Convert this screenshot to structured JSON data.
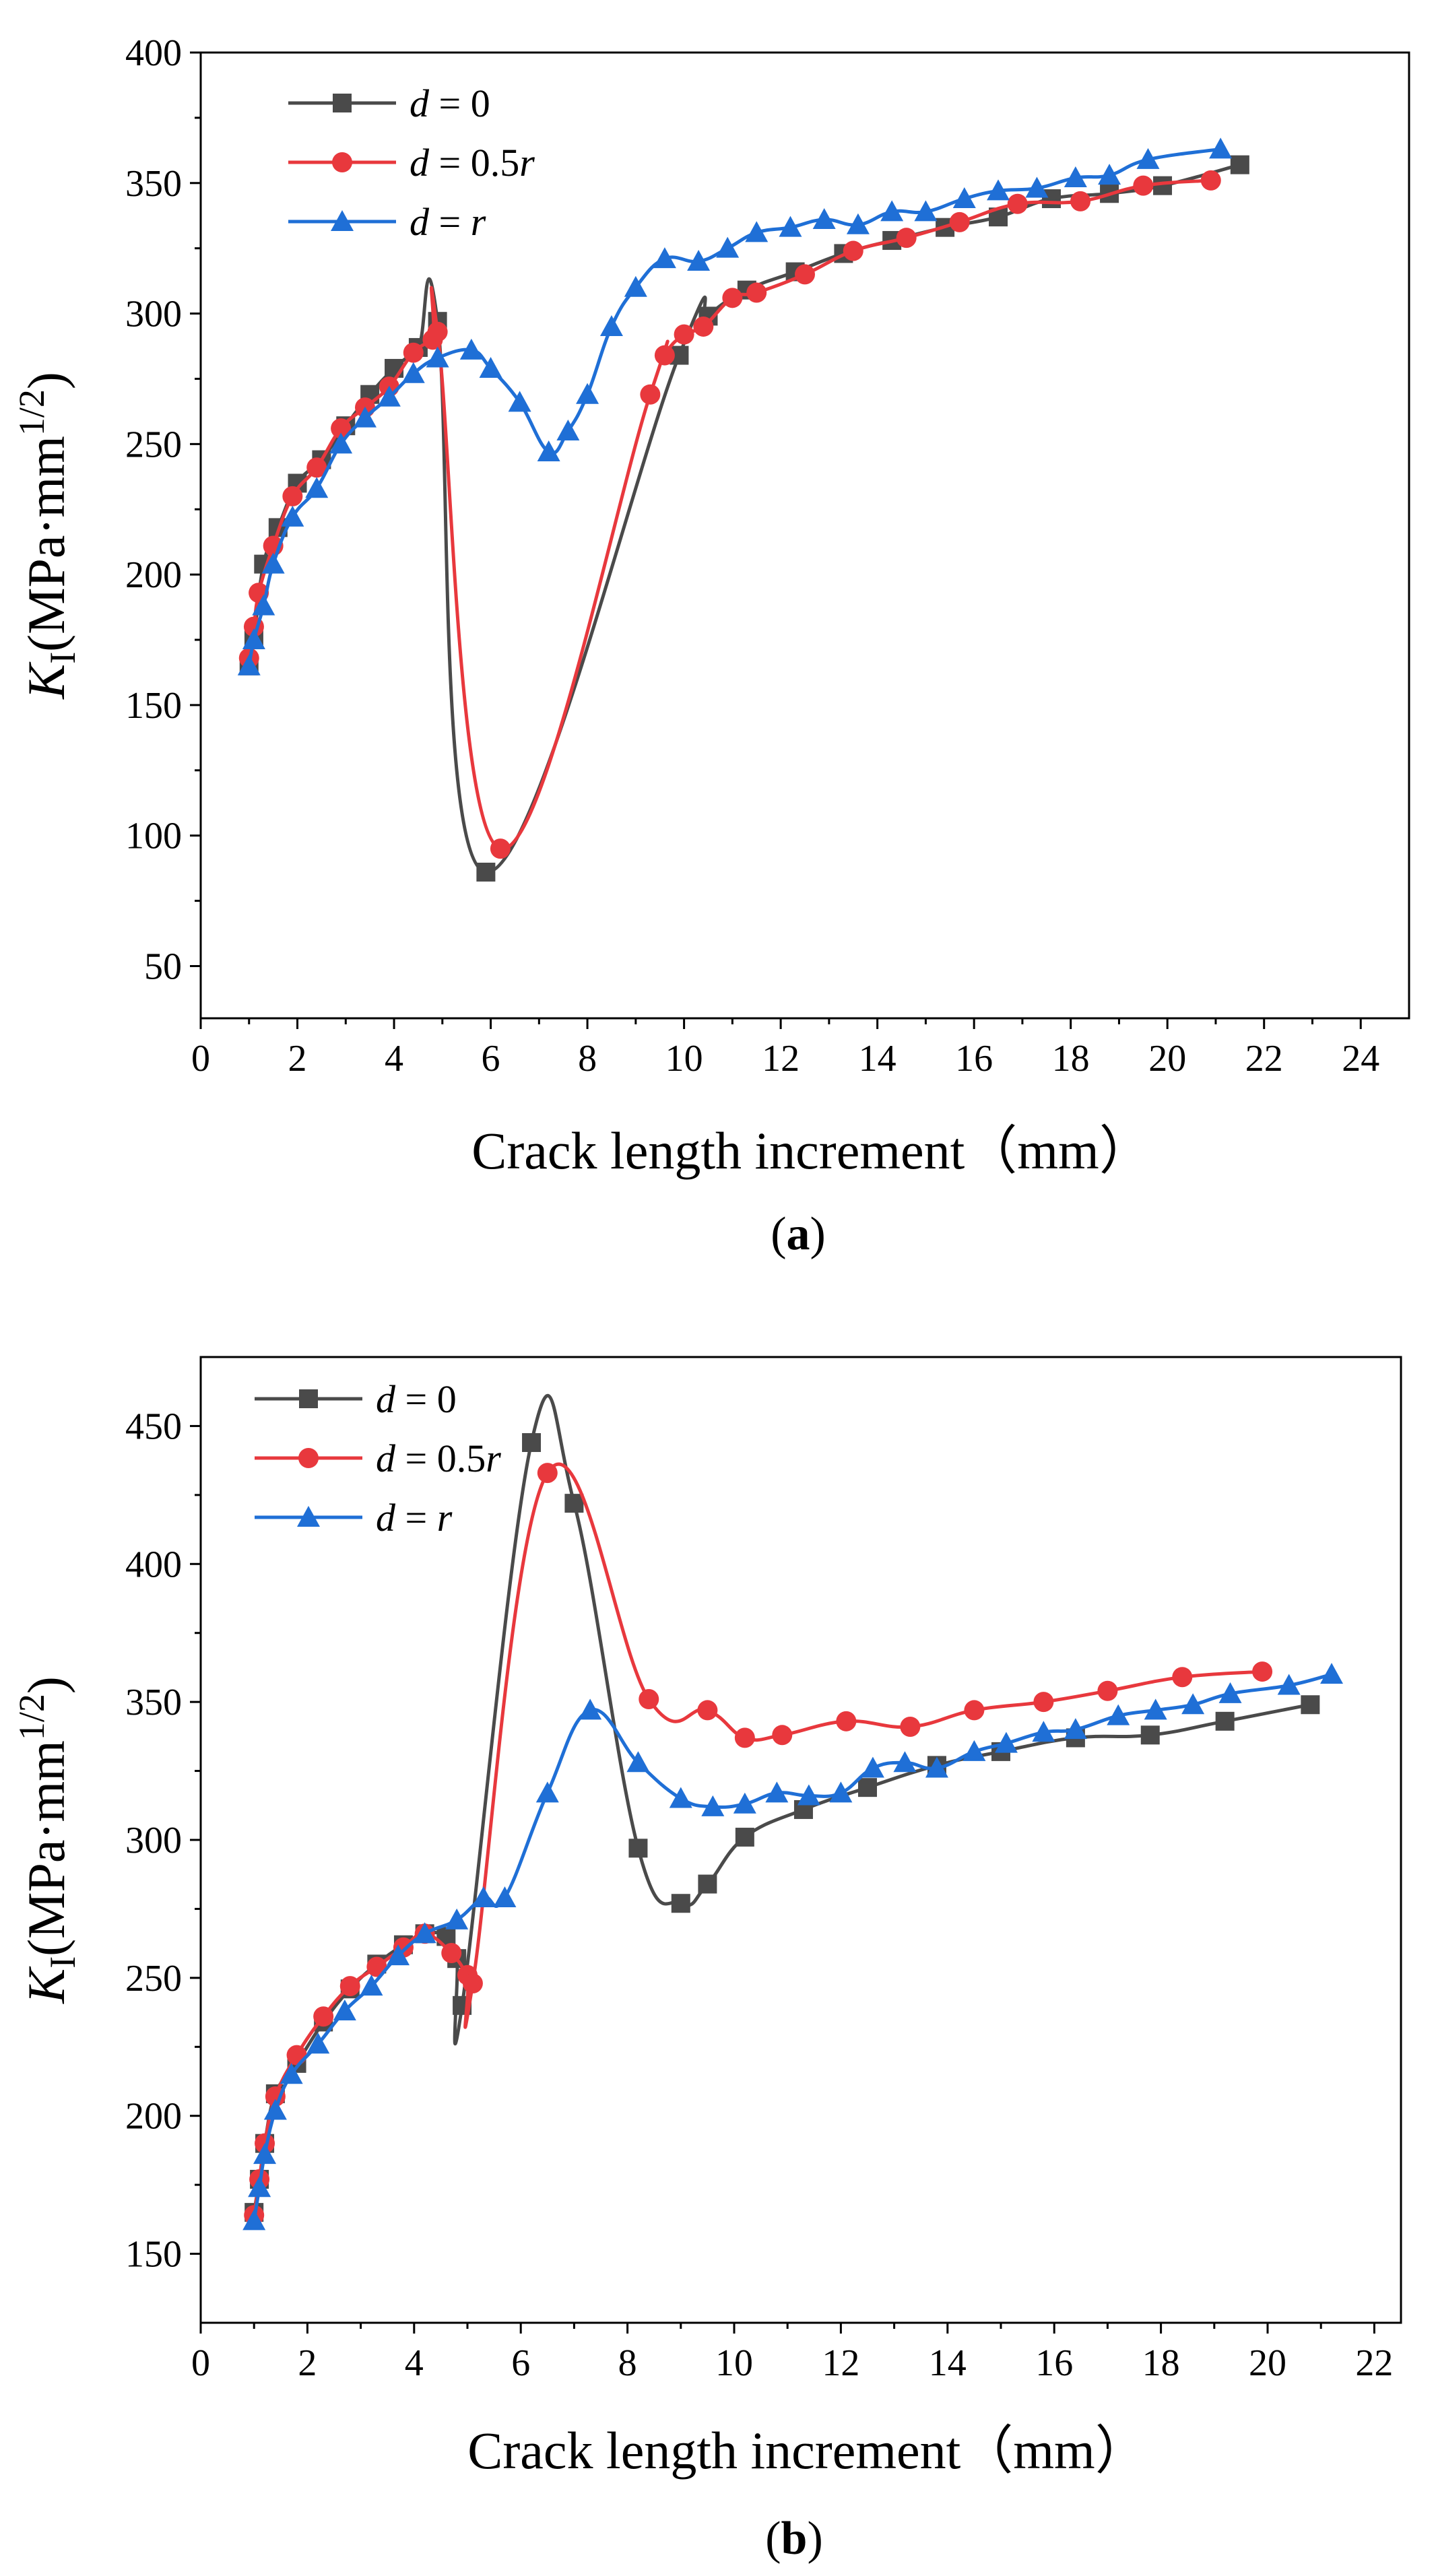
{
  "chart_data": [
    {
      "type": "line",
      "panel": "(a)",
      "panel_letter": "a",
      "xlabel": "Crack length increment（mm）",
      "ylabel": "KI(MPa·mm1/2)",
      "ylabel_parts": {
        "K": "K",
        "sub": "I",
        "open": "(MPa·mm",
        "sup": "1/2",
        "close": ")"
      },
      "xlim": [
        0,
        25
      ],
      "ylim": [
        30,
        400
      ],
      "xticks": [
        "0",
        "2",
        "4",
        "6",
        "8",
        "10",
        "12",
        "14",
        "16",
        "18",
        "20",
        "22",
        "24"
      ],
      "yticks": [
        "50",
        "100",
        "150",
        "200",
        "250",
        "300",
        "350",
        "400"
      ],
      "series": [
        {
          "name": "d = 0",
          "name_var": "d",
          "name_rest": " = 0",
          "name_tail_italic": "",
          "color": "#4a4a4a",
          "marker": "square",
          "x": [
            1.0,
            1.1,
            1.3,
            1.6,
            2.0,
            2.5,
            3.0,
            3.5,
            4.0,
            4.5,
            4.9,
            5.9,
            9.9,
            10.5,
            11.3,
            12.3,
            13.3,
            14.3,
            15.4,
            16.5,
            17.6,
            18.8,
            19.9,
            21.5
          ],
          "y": [
            165,
            175,
            204,
            218,
            235,
            244,
            257,
            269,
            279,
            287,
            297,
            86,
            284,
            299,
            309,
            316,
            323,
            328,
            333,
            337,
            344,
            346,
            349,
            357
          ]
        },
        {
          "name": "d = 0.5r",
          "name_var": "d",
          "name_rest": " = 0.5",
          "name_tail_italic": "r",
          "color": "#e8383d",
          "marker": "circle",
          "x": [
            1.0,
            1.1,
            1.2,
            1.5,
            1.9,
            2.4,
            2.9,
            3.4,
            3.9,
            4.4,
            4.8,
            4.9,
            6.2,
            9.3,
            9.6,
            10.0,
            10.4,
            11.0,
            11.5,
            12.5,
            13.5,
            14.6,
            15.7,
            16.9,
            18.2,
            19.5,
            20.9
          ],
          "y": [
            168,
            180,
            193,
            211,
            230,
            241,
            256,
            264,
            272,
            285,
            290,
            293,
            95,
            269,
            284,
            292,
            295,
            306,
            308,
            315,
            324,
            329,
            335,
            342,
            343,
            349,
            351
          ]
        },
        {
          "name": "d = r",
          "name_var": "d",
          "name_rest": " = ",
          "name_tail_italic": "r",
          "color": "#1f6fd6",
          "marker": "triangle",
          "x": [
            1.0,
            1.1,
            1.3,
            1.5,
            1.9,
            2.4,
            2.9,
            3.4,
            3.9,
            4.4,
            4.9,
            5.6,
            6.0,
            6.6,
            7.2,
            7.6,
            8.0,
            8.5,
            9.0,
            9.6,
            10.3,
            10.9,
            11.5,
            12.2,
            12.9,
            13.6,
            14.3,
            15.0,
            15.8,
            16.5,
            17.3,
            18.1,
            18.8,
            19.6,
            21.1
          ],
          "y": [
            165,
            175,
            188,
            204,
            222,
            233,
            250,
            260,
            268,
            277,
            283,
            286,
            279,
            266,
            247,
            255,
            269,
            295,
            310,
            321,
            320,
            325,
            331,
            333,
            336,
            334,
            339,
            339,
            344,
            347,
            348,
            352,
            353,
            359,
            363
          ]
        }
      ]
    },
    {
      "type": "line",
      "panel": "(b)",
      "panel_letter": "b",
      "xlabel": "Crack length increment（mm）",
      "ylabel": "KI(MPa·mm1/2)",
      "ylabel_parts": {
        "K": "K",
        "sub": "I",
        "open": "(MPa·mm",
        "sup": "1/2",
        "close": ")"
      },
      "xlim": [
        0,
        22.5
      ],
      "ylim": [
        125,
        475
      ],
      "xticks": [
        "0",
        "2",
        "4",
        "6",
        "8",
        "10",
        "12",
        "14",
        "16",
        "18",
        "20",
        "22"
      ],
      "yticks": [
        "150",
        "200",
        "250",
        "300",
        "350",
        "400",
        "450"
      ],
      "series": [
        {
          "name": "d = 0",
          "name_var": "d",
          "name_rest": " = 0",
          "name_tail_italic": "",
          "color": "#4a4a4a",
          "marker": "square",
          "x": [
            1.0,
            1.1,
            1.2,
            1.4,
            1.8,
            2.3,
            2.8,
            3.3,
            3.8,
            4.2,
            4.6,
            4.8,
            4.9,
            6.2,
            7.0,
            8.2,
            9.0,
            9.5,
            10.2,
            11.3,
            12.5,
            13.8,
            15.0,
            16.4,
            17.8,
            19.2,
            20.8
          ],
          "y": [
            165,
            177,
            190,
            208,
            219,
            234,
            246,
            255,
            262,
            266,
            265,
            257,
            240,
            444,
            422,
            297,
            277,
            284,
            301,
            311,
            319,
            327,
            332,
            337,
            338,
            343,
            349
          ]
        },
        {
          "name": "d = 0.5r",
          "name_var": "d",
          "name_rest": " = 0.5",
          "name_tail_italic": "r",
          "color": "#e8383d",
          "marker": "circle",
          "x": [
            1.0,
            1.1,
            1.2,
            1.4,
            1.8,
            2.3,
            2.8,
            3.3,
            3.8,
            4.2,
            4.7,
            5.0,
            5.1,
            6.5,
            8.4,
            9.5,
            10.2,
            10.9,
            12.1,
            13.3,
            14.5,
            15.8,
            17.0,
            18.4,
            19.9
          ],
          "y": [
            164,
            177,
            190,
            207,
            222,
            236,
            247,
            254,
            261,
            266,
            259,
            251,
            248,
            433,
            351,
            347,
            337,
            338,
            343,
            341,
            347,
            350,
            354,
            359,
            361
          ]
        },
        {
          "name": "d = r",
          "name_var": "d",
          "name_rest": " = ",
          "name_tail_italic": "r",
          "color": "#1f6fd6",
          "marker": "triangle",
          "x": [
            1.0,
            1.1,
            1.2,
            1.4,
            1.7,
            2.2,
            2.7,
            3.2,
            3.7,
            4.2,
            4.8,
            5.3,
            5.7,
            6.5,
            7.3,
            8.2,
            9.0,
            9.6,
            10.2,
            10.8,
            11.4,
            12.0,
            12.6,
            13.2,
            13.8,
            14.5,
            15.1,
            15.8,
            16.4,
            17.2,
            17.9,
            18.6,
            19.3,
            20.4,
            21.2
          ],
          "y": [
            162,
            174,
            186,
            202,
            215,
            226,
            238,
            247,
            258,
            266,
            271,
            279,
            279,
            317,
            347,
            328,
            315,
            312,
            313,
            317,
            316,
            317,
            326,
            328,
            326,
            332,
            335,
            339,
            340,
            345,
            347,
            349,
            353,
            356,
            360
          ]
        }
      ]
    }
  ]
}
